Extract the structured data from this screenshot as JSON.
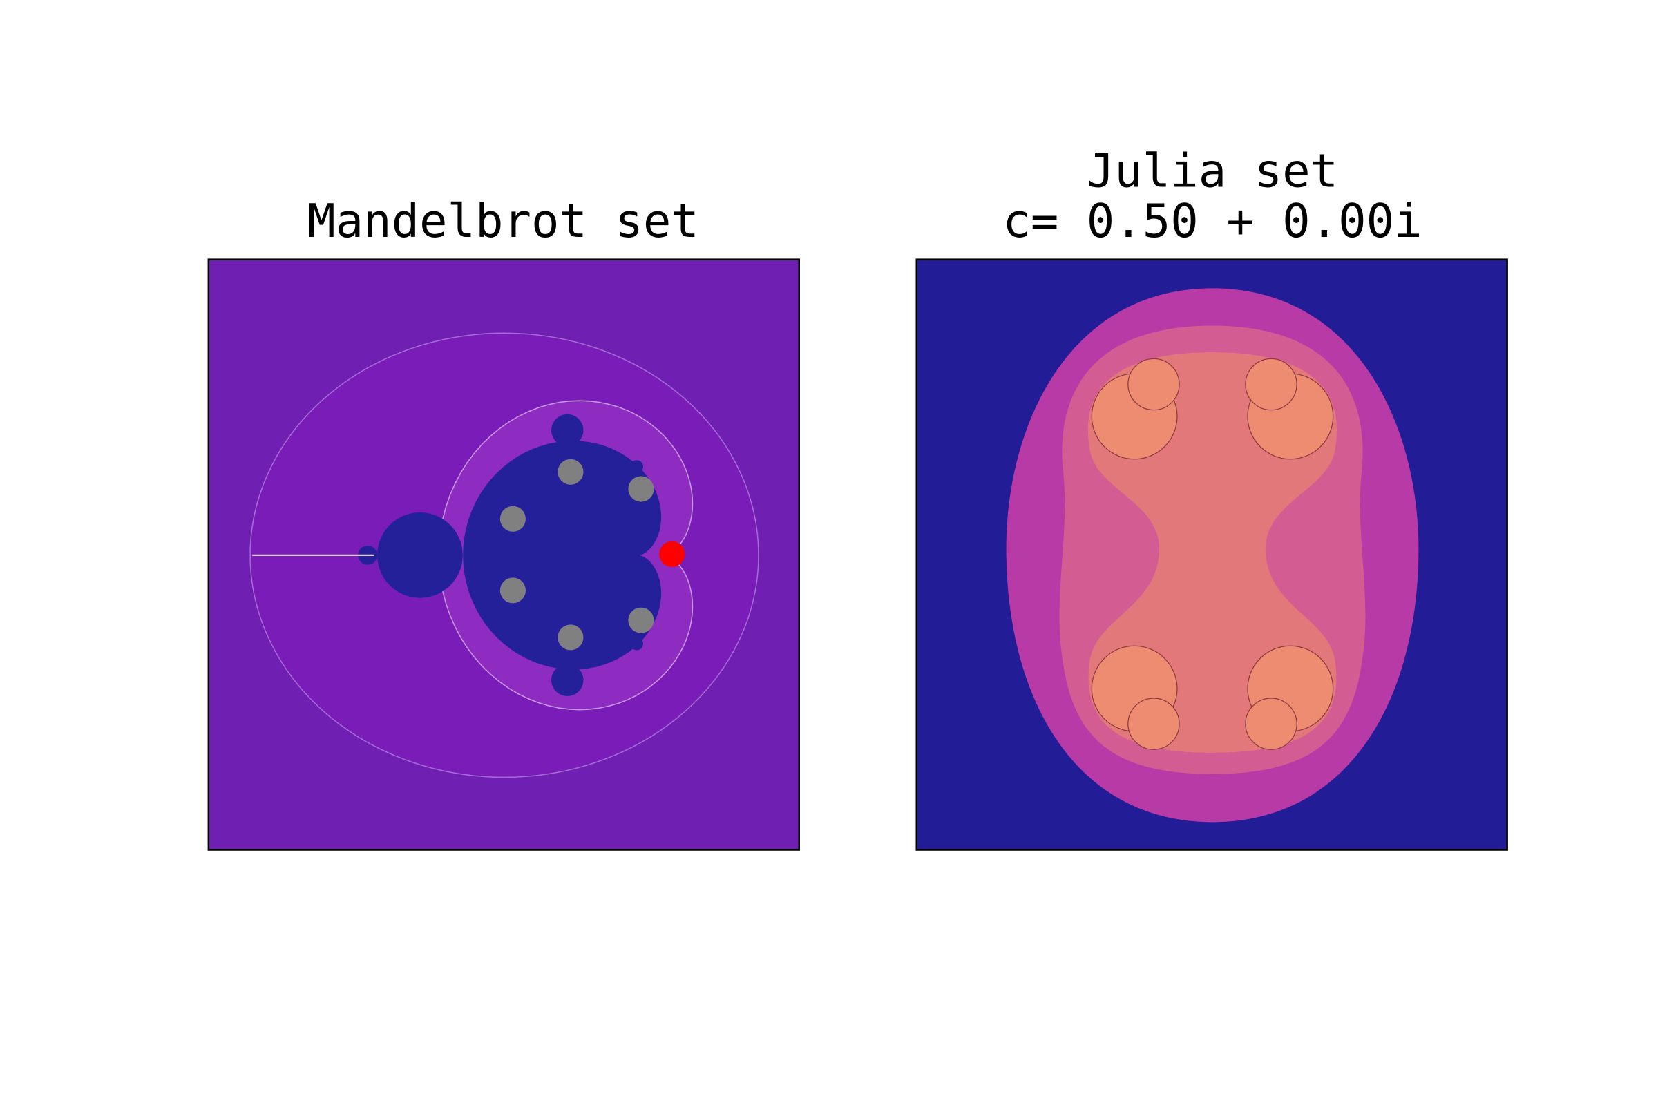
{
  "panels": [
    {
      "title": [
        "Mandelbrot set"
      ]
    },
    {
      "title": [
        "Julia set",
        "c= 0.50 + 0.00i"
      ]
    }
  ]
}
